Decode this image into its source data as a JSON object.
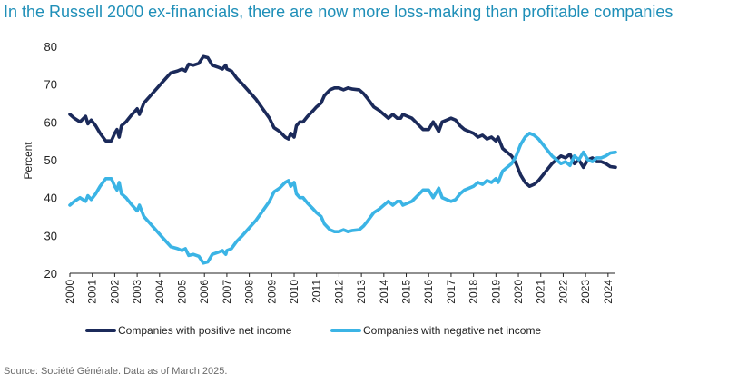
{
  "title": "In the Russell 2000 ex-financials, there are now more loss-making than profitable companies",
  "source": "Source: Société Générale. Data as of March 2025.",
  "colors": {
    "positive": "#1b2a5a",
    "negative": "#3bb4e5",
    "title": "#1f8fb8"
  },
  "chart_data": {
    "type": "line",
    "title": "In the Russell 2000 ex-financials, there are now more loss-making than profitable companies",
    "ylabel": "Percent",
    "xlabel": "",
    "ylim": [
      20,
      80
    ],
    "xlim": [
      2000,
      2024.33
    ],
    "yticks": [
      20,
      30,
      40,
      50,
      60,
      70,
      80
    ],
    "xticks": [
      "2000",
      "2001",
      "2002",
      "2003",
      "2004",
      "2005",
      "2006",
      "2007",
      "2008",
      "2009",
      "2010",
      "2011",
      "2012",
      "2013",
      "2014",
      "2015",
      "2016",
      "2017",
      "2018",
      "2019",
      "2020",
      "2021",
      "2022",
      "2023",
      "2024"
    ],
    "legend_position": "bottom",
    "series": [
      {
        "name": "Companies with positive net income",
        "color": "#1b2a5a",
        "points": [
          [
            2000.0,
            62
          ],
          [
            2000.2,
            61
          ],
          [
            2000.45,
            60
          ],
          [
            2000.7,
            61.5
          ],
          [
            2000.8,
            59.5
          ],
          [
            2000.95,
            60.5
          ],
          [
            2001.15,
            59
          ],
          [
            2001.35,
            57
          ],
          [
            2001.6,
            55
          ],
          [
            2001.85,
            55
          ],
          [
            2002.0,
            57
          ],
          [
            2002.1,
            58
          ],
          [
            2002.2,
            56
          ],
          [
            2002.3,
            59
          ],
          [
            2002.5,
            60
          ],
          [
            2002.7,
            61.5
          ],
          [
            2003.0,
            63.5
          ],
          [
            2003.1,
            62
          ],
          [
            2003.3,
            65
          ],
          [
            2003.6,
            67
          ],
          [
            2003.9,
            69
          ],
          [
            2004.2,
            71
          ],
          [
            2004.5,
            73
          ],
          [
            2004.8,
            73.5
          ],
          [
            2005.0,
            74
          ],
          [
            2005.15,
            73.5
          ],
          [
            2005.3,
            75.3
          ],
          [
            2005.5,
            75
          ],
          [
            2005.75,
            75.5
          ],
          [
            2005.95,
            77.3
          ],
          [
            2006.15,
            77
          ],
          [
            2006.35,
            75
          ],
          [
            2006.6,
            74.5
          ],
          [
            2006.8,
            74
          ],
          [
            2006.95,
            75
          ],
          [
            2007.0,
            74
          ],
          [
            2007.2,
            73.5
          ],
          [
            2007.45,
            71.5
          ],
          [
            2007.7,
            70
          ],
          [
            2008.0,
            68
          ],
          [
            2008.3,
            66
          ],
          [
            2008.6,
            63.5
          ],
          [
            2008.9,
            61
          ],
          [
            2009.1,
            58.5
          ],
          [
            2009.35,
            57.5
          ],
          [
            2009.6,
            56
          ],
          [
            2009.75,
            55.5
          ],
          [
            2009.85,
            57
          ],
          [
            2010.0,
            56
          ],
          [
            2010.1,
            59
          ],
          [
            2010.25,
            60
          ],
          [
            2010.4,
            60
          ],
          [
            2010.6,
            61.5
          ],
          [
            2010.85,
            63
          ],
          [
            2011.0,
            64
          ],
          [
            2011.2,
            65
          ],
          [
            2011.35,
            67
          ],
          [
            2011.6,
            68.5
          ],
          [
            2011.8,
            69
          ],
          [
            2012.0,
            69
          ],
          [
            2012.2,
            68.5
          ],
          [
            2012.4,
            69
          ],
          [
            2012.6,
            68.7
          ],
          [
            2012.9,
            68.5
          ],
          [
            2013.1,
            67.5
          ],
          [
            2013.3,
            66
          ],
          [
            2013.55,
            64
          ],
          [
            2013.8,
            63
          ],
          [
            2014.0,
            62
          ],
          [
            2014.2,
            61
          ],
          [
            2014.4,
            62
          ],
          [
            2014.6,
            61
          ],
          [
            2014.75,
            61
          ],
          [
            2014.85,
            62
          ],
          [
            2015.05,
            61.5
          ],
          [
            2015.25,
            61
          ],
          [
            2015.5,
            59.5
          ],
          [
            2015.75,
            58
          ],
          [
            2016.0,
            58
          ],
          [
            2016.2,
            60
          ],
          [
            2016.3,
            59
          ],
          [
            2016.45,
            57.5
          ],
          [
            2016.6,
            60
          ],
          [
            2016.8,
            60.5
          ],
          [
            2017.0,
            61
          ],
          [
            2017.2,
            60.5
          ],
          [
            2017.4,
            59
          ],
          [
            2017.6,
            58
          ],
          [
            2017.8,
            57.5
          ],
          [
            2018.0,
            57
          ],
          [
            2018.2,
            56
          ],
          [
            2018.4,
            56.5
          ],
          [
            2018.6,
            55.5
          ],
          [
            2018.8,
            56
          ],
          [
            2019.0,
            55
          ],
          [
            2019.1,
            56
          ],
          [
            2019.3,
            53
          ],
          [
            2019.5,
            52
          ],
          [
            2019.7,
            51
          ],
          [
            2019.9,
            49
          ],
          [
            2020.1,
            46
          ],
          [
            2020.3,
            44
          ],
          [
            2020.5,
            43
          ],
          [
            2020.7,
            43.5
          ],
          [
            2020.9,
            44.5
          ],
          [
            2021.1,
            46
          ],
          [
            2021.3,
            47.5
          ],
          [
            2021.5,
            49
          ],
          [
            2021.7,
            50
          ],
          [
            2021.9,
            51
          ],
          [
            2022.1,
            50.5
          ],
          [
            2022.3,
            51.5
          ],
          [
            2022.5,
            49
          ],
          [
            2022.7,
            50
          ],
          [
            2022.9,
            48
          ],
          [
            2023.1,
            50
          ],
          [
            2023.3,
            50.5
          ],
          [
            2023.5,
            49.5
          ],
          [
            2023.7,
            49.5
          ],
          [
            2023.9,
            49
          ],
          [
            2024.1,
            48.2
          ],
          [
            2024.33,
            48
          ]
        ]
      },
      {
        "name": "Companies with negative net income",
        "color": "#3bb4e5",
        "points": [
          [
            2000.0,
            38
          ],
          [
            2000.2,
            39
          ],
          [
            2000.45,
            40
          ],
          [
            2000.7,
            39
          ],
          [
            2000.8,
            40.5
          ],
          [
            2000.95,
            39.5
          ],
          [
            2001.15,
            41
          ],
          [
            2001.35,
            43
          ],
          [
            2001.6,
            45
          ],
          [
            2001.85,
            45
          ],
          [
            2002.0,
            43
          ],
          [
            2002.1,
            42
          ],
          [
            2002.2,
            44
          ],
          [
            2002.3,
            41
          ],
          [
            2002.5,
            40
          ],
          [
            2002.7,
            38.5
          ],
          [
            2003.0,
            36.5
          ],
          [
            2003.1,
            38
          ],
          [
            2003.3,
            35
          ],
          [
            2003.6,
            33
          ],
          [
            2003.9,
            31
          ],
          [
            2004.2,
            29
          ],
          [
            2004.5,
            27
          ],
          [
            2004.8,
            26.5
          ],
          [
            2005.0,
            26
          ],
          [
            2005.15,
            26.5
          ],
          [
            2005.3,
            24.7
          ],
          [
            2005.5,
            25
          ],
          [
            2005.75,
            24.5
          ],
          [
            2005.95,
            22.7
          ],
          [
            2006.15,
            23
          ],
          [
            2006.35,
            25
          ],
          [
            2006.6,
            25.5
          ],
          [
            2006.8,
            26
          ],
          [
            2006.95,
            25
          ],
          [
            2007.0,
            26
          ],
          [
            2007.2,
            26.5
          ],
          [
            2007.45,
            28.5
          ],
          [
            2007.7,
            30
          ],
          [
            2008.0,
            32
          ],
          [
            2008.3,
            34
          ],
          [
            2008.6,
            36.5
          ],
          [
            2008.9,
            39
          ],
          [
            2009.1,
            41.5
          ],
          [
            2009.35,
            42.5
          ],
          [
            2009.6,
            44
          ],
          [
            2009.75,
            44.5
          ],
          [
            2009.85,
            43
          ],
          [
            2010.0,
            44
          ],
          [
            2010.1,
            41
          ],
          [
            2010.25,
            40
          ],
          [
            2010.4,
            40
          ],
          [
            2010.6,
            38.5
          ],
          [
            2010.85,
            37
          ],
          [
            2011.0,
            36
          ],
          [
            2011.2,
            35
          ],
          [
            2011.35,
            33
          ],
          [
            2011.6,
            31.5
          ],
          [
            2011.8,
            31
          ],
          [
            2012.0,
            31
          ],
          [
            2012.2,
            31.5
          ],
          [
            2012.4,
            31
          ],
          [
            2012.6,
            31.3
          ],
          [
            2012.9,
            31.5
          ],
          [
            2013.1,
            32.5
          ],
          [
            2013.3,
            34
          ],
          [
            2013.55,
            36
          ],
          [
            2013.8,
            37
          ],
          [
            2014.0,
            38
          ],
          [
            2014.2,
            39
          ],
          [
            2014.4,
            38
          ],
          [
            2014.6,
            39
          ],
          [
            2014.75,
            39
          ],
          [
            2014.85,
            38
          ],
          [
            2015.05,
            38.5
          ],
          [
            2015.25,
            39
          ],
          [
            2015.5,
            40.5
          ],
          [
            2015.75,
            42
          ],
          [
            2016.0,
            42
          ],
          [
            2016.2,
            40
          ],
          [
            2016.3,
            41
          ],
          [
            2016.45,
            42.5
          ],
          [
            2016.6,
            40
          ],
          [
            2016.8,
            39.5
          ],
          [
            2017.0,
            39
          ],
          [
            2017.2,
            39.5
          ],
          [
            2017.4,
            41
          ],
          [
            2017.6,
            42
          ],
          [
            2017.8,
            42.5
          ],
          [
            2018.0,
            43
          ],
          [
            2018.2,
            44
          ],
          [
            2018.4,
            43.5
          ],
          [
            2018.6,
            44.5
          ],
          [
            2018.8,
            44
          ],
          [
            2019.0,
            45
          ],
          [
            2019.1,
            44
          ],
          [
            2019.3,
            47
          ],
          [
            2019.5,
            48
          ],
          [
            2019.7,
            49
          ],
          [
            2019.9,
            51
          ],
          [
            2020.1,
            54
          ],
          [
            2020.3,
            56
          ],
          [
            2020.5,
            57
          ],
          [
            2020.7,
            56.5
          ],
          [
            2020.9,
            55.5
          ],
          [
            2021.1,
            54
          ],
          [
            2021.3,
            52.5
          ],
          [
            2021.5,
            51
          ],
          [
            2021.7,
            50
          ],
          [
            2021.9,
            49
          ],
          [
            2022.1,
            49.5
          ],
          [
            2022.3,
            48.5
          ],
          [
            2022.5,
            51
          ],
          [
            2022.7,
            50
          ],
          [
            2022.9,
            52
          ],
          [
            2023.1,
            50
          ],
          [
            2023.3,
            49.5
          ],
          [
            2023.5,
            50.5
          ],
          [
            2023.7,
            50.5
          ],
          [
            2023.9,
            51
          ],
          [
            2024.1,
            51.8
          ],
          [
            2024.33,
            52
          ]
        ]
      }
    ]
  }
}
